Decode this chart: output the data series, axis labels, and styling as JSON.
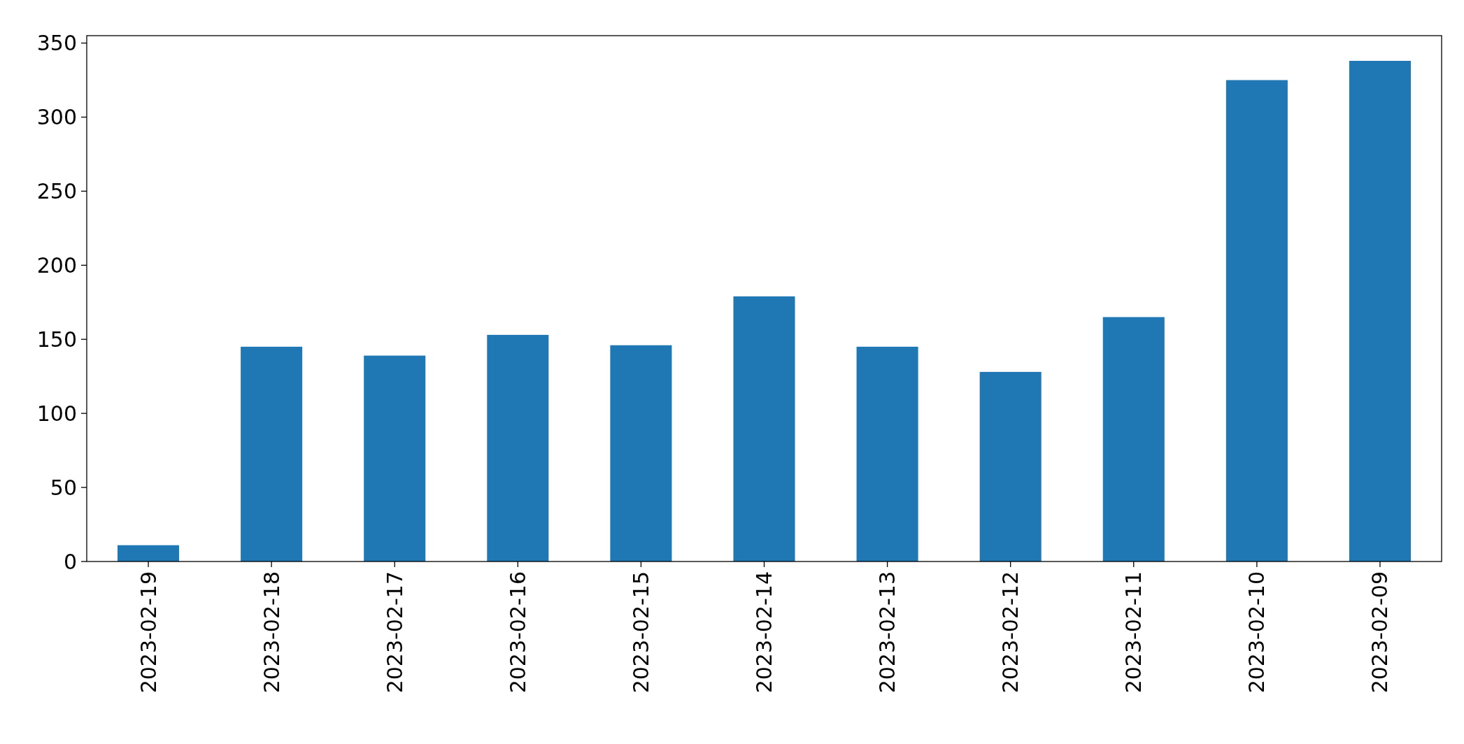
{
  "chart_data": {
    "type": "bar",
    "categories": [
      "2023-02-19",
      "2023-02-18",
      "2023-02-17",
      "2023-02-16",
      "2023-02-15",
      "2023-02-14",
      "2023-02-13",
      "2023-02-12",
      "2023-02-11",
      "2023-02-10",
      "2023-02-09"
    ],
    "values": [
      11,
      145,
      139,
      153,
      146,
      179,
      145,
      128,
      165,
      325,
      338
    ],
    "color": "#1f77b4",
    "ylim": [
      0,
      355
    ],
    "yticks": [
      0,
      50,
      100,
      150,
      200,
      250,
      300,
      350
    ],
    "grid": false
  }
}
